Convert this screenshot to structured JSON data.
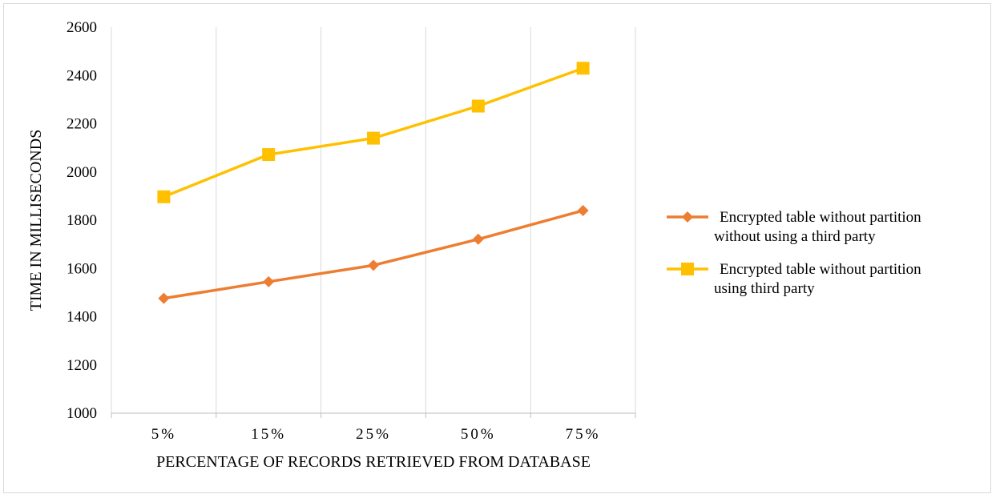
{
  "chart_data": {
    "type": "line",
    "title": "",
    "xlabel": "PERCENTAGE OF RECORDS RETRIEVED FROM DATABASE",
    "ylabel": "TIME IN MILLISECONDS",
    "categories": [
      "5%",
      "15%",
      "25%",
      "50%",
      "75%"
    ],
    "ylim": [
      1000,
      2600
    ],
    "yticks": [
      "1000",
      "1200",
      "1400",
      "1600",
      "1800",
      "2000",
      "2200",
      "2400",
      "2600"
    ],
    "grid": "vertical",
    "legend_position": "right",
    "series": [
      {
        "name_lines": [
          "Encrypted table without partition",
          "without using a third party"
        ],
        "values": [
          1476,
          1545,
          1613,
          1721,
          1840
        ],
        "color": "#ED7D31",
        "marker": "diamond"
      },
      {
        "name_lines": [
          "Encrypted table without partition",
          "using third party"
        ],
        "values": [
          1897,
          2072,
          2140,
          2273,
          2430
        ],
        "color": "#FFC000",
        "marker": "square"
      }
    ]
  }
}
